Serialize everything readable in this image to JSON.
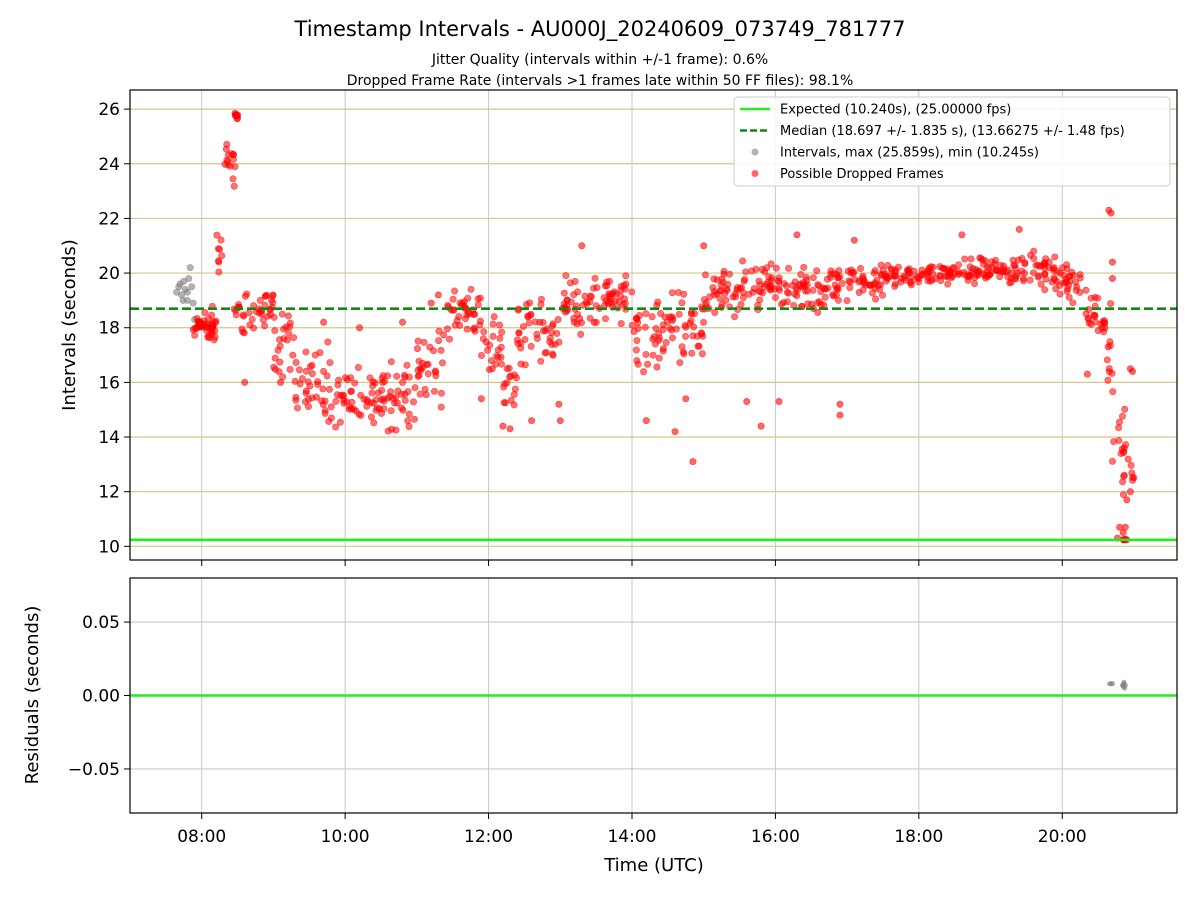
{
  "chart_data": {
    "title": "Timestamp Intervals - AU000J_20240609_073749_781777",
    "subtitle_lines": [
      "Jitter Quality (intervals within +/-1 frame): 0.6%",
      "Dropped Frame Rate (intervals >1 frames late within 50 FF files): 98.1%"
    ],
    "xlabel": "Time (UTC)",
    "xlim_hours": [
      7.0,
      21.6
    ],
    "x_ticks": [
      {
        "value": 8,
        "label": "08:00"
      },
      {
        "value": 10,
        "label": "10:00"
      },
      {
        "value": 12,
        "label": "12:00"
      },
      {
        "value": 14,
        "label": "14:00"
      },
      {
        "value": 16,
        "label": "16:00"
      },
      {
        "value": 18,
        "label": "18:00"
      },
      {
        "value": 20,
        "label": "20:00"
      }
    ],
    "panels": [
      {
        "type": "scatter",
        "ylabel": "Intervals (seconds)",
        "ylim": [
          9.5,
          26.7
        ],
        "y_ticks": [
          10,
          12,
          14,
          16,
          18,
          20,
          22,
          24,
          26
        ],
        "grid": true,
        "hlines": [
          {
            "name": "Expected (10.240s), (25.00000 fps)",
            "y": 10.24,
            "color": "#22ee22",
            "style": "solid"
          },
          {
            "name": "Median (18.697 +/- 1.835 s), (13.66275 +/- 1.48 fps)",
            "y": 18.697,
            "color": "#118811",
            "style": "dashed"
          }
        ],
        "series": [
          {
            "name": "Intervals, max (25.859s), min (10.245s)",
            "color": "#808080",
            "points": [
              [
                7.65,
                19.3
              ],
              [
                7.68,
                19.5
              ],
              [
                7.7,
                19.6
              ],
              [
                7.72,
                19.2
              ],
              [
                7.75,
                19.7
              ],
              [
                7.77,
                19.4
              ],
              [
                7.8,
                19.0
              ],
              [
                7.82,
                19.8
              ],
              [
                7.84,
                20.2
              ],
              [
                7.86,
                19.5
              ],
              [
                7.88,
                18.9
              ],
              [
                7.9,
                18.3
              ],
              [
                7.92,
                18.0
              ],
              [
                7.8,
                19.3
              ],
              [
                7.74,
                19.0
              ]
            ]
          },
          {
            "name": "Possible Dropped Frames",
            "color": "#ff0000",
            "bands": [
              [
                7.88,
                8.2,
                17.7,
                18.5
              ],
              [
                7.9,
                8.2,
                16.9,
                19.0
              ],
              [
                8.2,
                8.3,
                19.8,
                21.9
              ],
              [
                8.3,
                8.5,
                23.0,
                25.2
              ],
              [
                8.45,
                8.5,
                25.6,
                25.9
              ],
              [
                8.45,
                9.0,
                17.6,
                19.6
              ],
              [
                9.0,
                9.3,
                16.0,
                19.3
              ],
              [
                9.3,
                9.8,
                14.3,
                17.6
              ],
              [
                9.8,
                10.6,
                14.1,
                16.6
              ],
              [
                10.6,
                11.0,
                14.1,
                17.2
              ],
              [
                11.0,
                11.4,
                15.0,
                18.2
              ],
              [
                11.4,
                11.9,
                17.3,
                19.6
              ],
              [
                11.9,
                12.2,
                16.2,
                18.8
              ],
              [
                12.2,
                12.4,
                14.5,
                17.0
              ],
              [
                12.4,
                13.0,
                16.5,
                19.3
              ],
              [
                13.0,
                13.5,
                17.5,
                20.2
              ],
              [
                13.5,
                14.0,
                18.0,
                20.0
              ],
              [
                14.0,
                14.5,
                16.2,
                19.6
              ],
              [
                14.5,
                15.0,
                16.5,
                19.6
              ],
              [
                15.0,
                15.5,
                18.3,
                20.2
              ],
              [
                15.5,
                16.0,
                18.6,
                20.6
              ],
              [
                16.0,
                16.5,
                18.6,
                20.4
              ],
              [
                16.5,
                17.0,
                18.5,
                20.3
              ],
              [
                17.0,
                17.5,
                19.0,
                20.4
              ],
              [
                17.5,
                18.0,
                19.4,
                20.3
              ],
              [
                18.0,
                18.5,
                19.5,
                20.4
              ],
              [
                18.5,
                19.0,
                19.5,
                20.6
              ],
              [
                19.0,
                19.5,
                19.5,
                20.6
              ],
              [
                19.5,
                19.9,
                19.3,
                20.9
              ],
              [
                19.9,
                20.3,
                18.8,
                20.6
              ],
              [
                20.3,
                20.5,
                17.9,
                19.6
              ],
              [
                20.5,
                20.62,
                17.4,
                18.5
              ],
              [
                20.62,
                20.7,
                15.3,
                19.2
              ],
              [
                20.7,
                20.88,
                11.5,
                16.2
              ],
              [
                20.85,
                21.0,
                11.7,
                15.4
              ]
            ],
            "sparse": [
              [
                14.85,
                13.1
              ],
              [
                14.6,
                14.2
              ],
              [
                15.0,
                21.0
              ],
              [
                13.3,
                21.0
              ],
              [
                16.3,
                21.4
              ],
              [
                18.6,
                21.4
              ],
              [
                19.4,
                21.6
              ],
              [
                17.1,
                21.2
              ],
              [
                20.65,
                22.3
              ],
              [
                20.68,
                22.2
              ],
              [
                11.2,
                18.9
              ],
              [
                11.9,
                15.4
              ],
              [
                13.0,
                14.6
              ],
              [
                12.6,
                14.6
              ],
              [
                12.2,
                14.4
              ],
              [
                12.3,
                14.3
              ],
              [
                16.9,
                14.8
              ],
              [
                16.9,
                15.2
              ],
              [
                15.8,
                14.4
              ],
              [
                15.6,
                15.3
              ],
              [
                14.75,
                15.4
              ],
              [
                16.05,
                15.3
              ],
              [
                12.98,
                15.2
              ],
              [
                14.2,
                14.6
              ],
              [
                20.35,
                16.3
              ],
              [
                20.77,
                10.3
              ],
              [
                20.8,
                10.7
              ],
              [
                20.85,
                10.5
              ],
              [
                20.88,
                10.7
              ],
              [
                20.9,
                11.7
              ],
              [
                20.95,
                12.0
              ],
              [
                20.95,
                16.5
              ],
              [
                20.98,
                16.4
              ],
              [
                20.7,
                20.4
              ],
              [
                20.7,
                19.8
              ],
              [
                20.85,
                10.24
              ],
              [
                20.87,
                10.24
              ],
              [
                20.9,
                10.24
              ],
              [
                20.88,
                10.26
              ],
              [
                20.86,
                10.24
              ],
              [
                20.64,
                17.3
              ],
              [
                9.1,
                16.0
              ],
              [
                8.6,
                16.0
              ],
              [
                10.2,
                18.0
              ],
              [
                10.8,
                18.2
              ],
              [
                11.3,
                19.2
              ],
              [
                9.7,
                18.2
              ]
            ]
          }
        ],
        "legend": {
          "placement": "top-right"
        }
      },
      {
        "type": "scatter",
        "ylabel": "Residuals (seconds)",
        "ylim": [
          -0.08,
          0.08
        ],
        "y_ticks": [
          {
            "value": 0.05,
            "label": "0.05"
          },
          {
            "value": 0.0,
            "label": "0.00"
          },
          {
            "value": -0.05,
            "label": "−0.05"
          }
        ],
        "grid": true,
        "hlines": [
          {
            "y": 0.0,
            "color": "#22ee22",
            "style": "solid"
          }
        ],
        "series": [
          {
            "color": "#808080",
            "points": [
              [
                20.66,
                0.008
              ],
              [
                20.68,
                0.008
              ],
              [
                20.7,
                0.008
              ],
              [
                20.84,
                0.007
              ],
              [
                20.85,
                0.006
              ],
              [
                20.86,
                0.008
              ],
              [
                20.87,
                0.005
              ],
              [
                20.88,
                0.007
              ],
              [
                20.86,
                0.009
              ],
              [
                20.85,
                0.007
              ]
            ]
          }
        ]
      }
    ]
  },
  "palette": {
    "grid_main": "#d7c68a",
    "grid_resid": "#c8c8c8",
    "axis": "#000000"
  }
}
